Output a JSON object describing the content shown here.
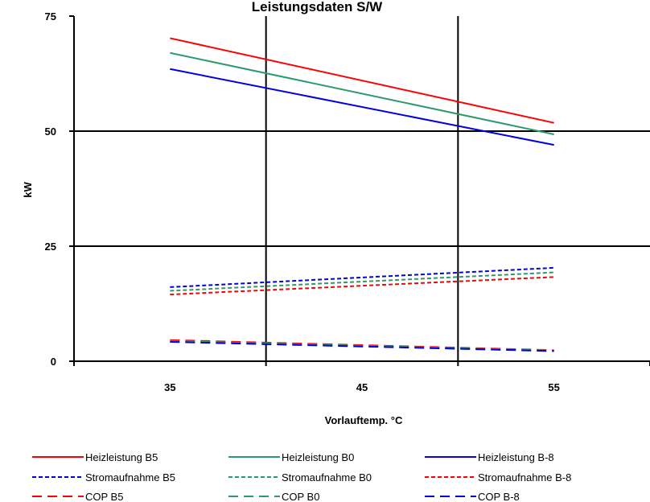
{
  "chart_data": {
    "type": "line",
    "title": "Leistungsdaten S/W",
    "xlabel": "Vorlauftemp. °C",
    "ylabel": "kW",
    "xlim": [
      30,
      60
    ],
    "ylim": [
      0,
      75
    ],
    "x_ticks": [
      35,
      45,
      55
    ],
    "y_ticks": [
      0,
      25,
      50,
      75
    ],
    "grid": "major gridlines at x=40, x=50 and y=25, y=50",
    "legend_position": "bottom",
    "series": [
      {
        "name": "Heizleistung B5",
        "color": "#ff0000",
        "style": "solid",
        "x": [
          35,
          55
        ],
        "y": [
          70.2,
          51.8
        ]
      },
      {
        "name": "Heizleistung B0",
        "color": "#2e9a6a",
        "style": "solid",
        "x": [
          35,
          55
        ],
        "y": [
          67.0,
          49.3
        ]
      },
      {
        "name": "Heizleistung B-8",
        "color": "#0000e0",
        "style": "solid",
        "x": [
          35,
          55
        ],
        "y": [
          63.5,
          47.0
        ]
      },
      {
        "name": "Stromaufnahme B5",
        "color": "#0000e0",
        "style": "dotted",
        "x": [
          35,
          55
        ],
        "y": [
          16.1,
          20.3
        ]
      },
      {
        "name": "Stromaufnahme B0",
        "color": "#2e9a6a",
        "style": "dotted",
        "x": [
          35,
          55
        ],
        "y": [
          15.3,
          19.3
        ]
      },
      {
        "name": "Stromaufnahme B-8",
        "color": "#ff0000",
        "style": "dotted",
        "x": [
          35,
          55
        ],
        "y": [
          14.5,
          18.3
        ]
      },
      {
        "name": "COP B5",
        "color": "#ff0000",
        "style": "dashed",
        "x": [
          35,
          55
        ],
        "y": [
          4.6,
          2.4
        ]
      },
      {
        "name": "COP B0",
        "color": "#2e9a6a",
        "style": "dashed",
        "x": [
          35,
          55
        ],
        "y": [
          4.4,
          2.3
        ]
      },
      {
        "name": "COP B-8",
        "color": "#0000e0",
        "style": "dashed",
        "x": [
          35,
          55
        ],
        "y": [
          4.2,
          2.2
        ]
      }
    ]
  }
}
